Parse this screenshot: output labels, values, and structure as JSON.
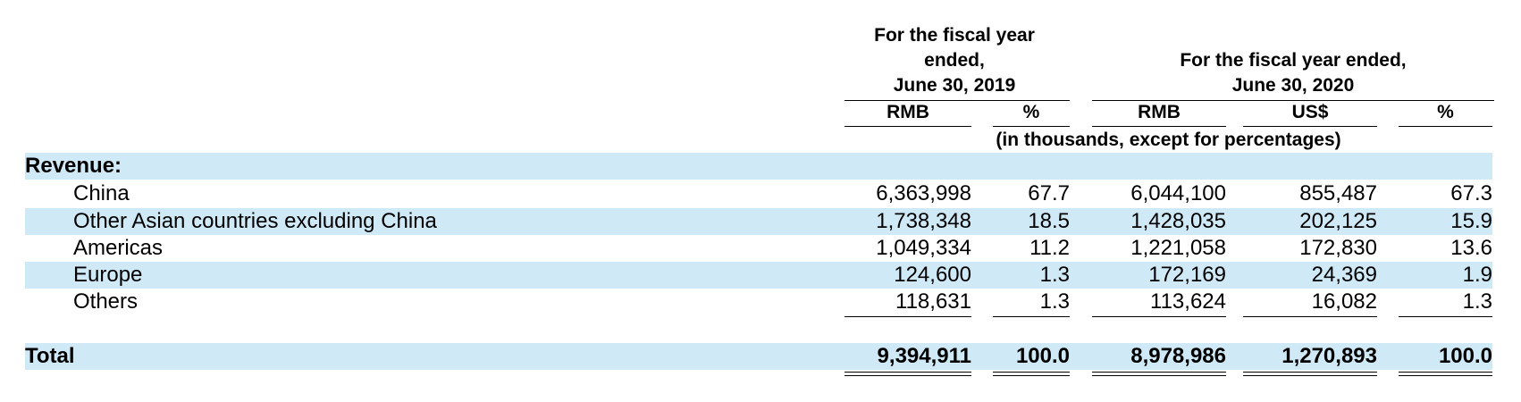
{
  "header": {
    "fy2019_title": [
      "For the fiscal year",
      "ended,",
      "June 30, 2019"
    ],
    "fy2020_title": [
      "For the fiscal year ended,",
      "June 30, 2020"
    ],
    "columns": [
      "RMB",
      "%",
      "RMB",
      "US$",
      "%"
    ],
    "units_note": "(in thousands, except for percentages)"
  },
  "section_label": "Revenue:",
  "rows": [
    {
      "label": "China",
      "values": [
        "6,363,998",
        "67.7",
        "6,044,100",
        "855,487",
        "67.3"
      ]
    },
    {
      "label": "Other Asian countries excluding China",
      "values": [
        "1,738,348",
        "18.5",
        "1,428,035",
        "202,125",
        "15.9"
      ]
    },
    {
      "label": "Americas",
      "values": [
        "1,049,334",
        "11.2",
        "1,221,058",
        "172,830",
        "13.6"
      ]
    },
    {
      "label": "Europe",
      "values": [
        "124,600",
        "1.3",
        "172,169",
        "24,369",
        "1.9"
      ]
    },
    {
      "label": "Others",
      "values": [
        "118,631",
        "1.3",
        "113,624",
        "16,082",
        "1.3"
      ]
    }
  ],
  "total": {
    "label": "Total",
    "values": [
      "9,394,911",
      "100.0",
      "8,978,986",
      "1,270,893",
      "100.0"
    ]
  },
  "colors": {
    "band": "#cfe9f7"
  }
}
